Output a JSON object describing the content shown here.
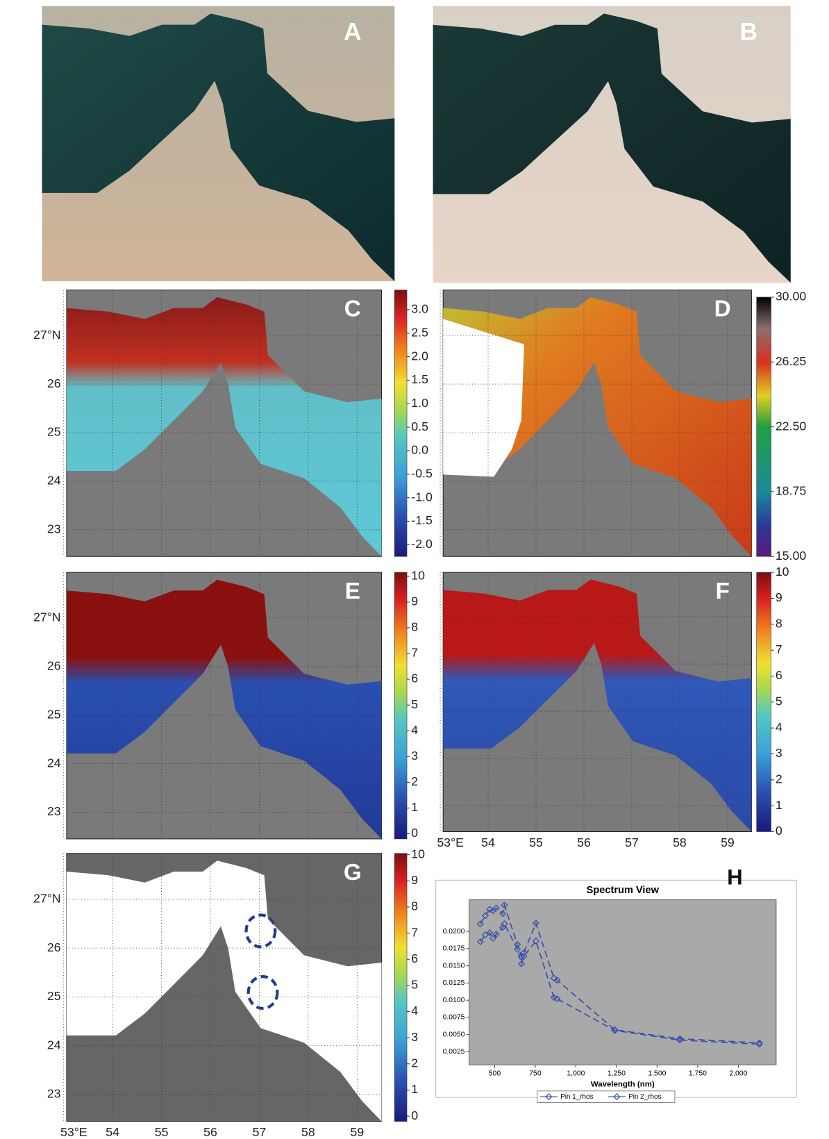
{
  "panels": [
    {
      "label": "A"
    },
    {
      "label": "B"
    }
  ],
  "map_axes": {
    "lat_range": [
      22.45,
      27.94
    ],
    "lon_range": [
      53.06,
      59.5
    ],
    "lat_ticks": [
      {
        "value": 27,
        "label": "27°N"
      },
      26,
      25,
      24,
      23
    ],
    "lon_ticks": [
      {
        "value": 53,
        "label": "53°E"
      },
      54,
      55,
      56,
      57,
      58,
      59
    ]
  },
  "maps": [
    {
      "label": "C",
      "clim": [
        -2.25,
        3.42
      ],
      "ticks": [
        {
          "value": 3,
          "label": "3.0"
        },
        2.5,
        {
          "value": 2,
          "label": "2.0"
        },
        1.5,
        {
          "value": 1,
          "label": "1.0"
        },
        0.5,
        {
          "value": 0,
          "label": "0.0"
        },
        -0.5,
        {
          "value": -1,
          "label": "-1.0"
        },
        -1.5,
        {
          "value": -2,
          "label": "-2.0"
        }
      ]
    },
    {
      "label": "D",
      "clim": [
        15,
        30
      ],
      "ticks": [
        {
          "value": 30,
          "label": "30.00"
        },
        {
          "value": 26.25,
          "label": "26.25"
        },
        {
          "value": 22.5,
          "label": "22.50"
        },
        {
          "value": 18.75,
          "label": "18.75"
        },
        {
          "value": 15,
          "label": "15.00"
        }
      ]
    },
    {
      "label": "E",
      "clim": [
        -0.2,
        10.15
      ],
      "ticks": [
        10,
        9,
        8,
        7,
        6,
        5,
        4,
        3,
        2,
        1,
        0
      ]
    },
    {
      "label": "F",
      "clim": [
        0,
        10
      ],
      "ticks": [
        10,
        9,
        8,
        7,
        6,
        5,
        4,
        3,
        2,
        1,
        0
      ]
    },
    {
      "label": "G",
      "clim": [
        -0.2,
        10.05
      ],
      "ticks": [
        10,
        9,
        8,
        7,
        6,
        5,
        4,
        3,
        2,
        1,
        0
      ]
    }
  ],
  "chart_data": {
    "type": "line",
    "panel_label": "H",
    "title": "Spectrum View",
    "x_label": "Wavelength (nm)",
    "x": [
      412,
      443,
      470,
      490,
      510,
      550,
      560,
      640,
      665,
      680,
      754,
      865,
      885,
      1240,
      1640,
      2130
    ],
    "series": [
      {
        "name": "Pin 1_rhos",
        "color": "#3a4fa8",
        "values": [
          0.0211,
          0.0223,
          0.0232,
          0.023,
          0.0234,
          0.0226,
          0.0238,
          0.0181,
          0.0163,
          0.0169,
          0.0212,
          0.0132,
          0.0129,
          0.0057,
          0.0044,
          0.0038
        ]
      },
      {
        "name": "Pin 2_rhos",
        "color": "#3a4fa8",
        "values": [
          0.0185,
          0.0195,
          0.0198,
          0.019,
          0.0196,
          0.0206,
          0.0211,
          0.0174,
          0.0153,
          0.0164,
          0.0186,
          0.0104,
          0.0102,
          0.0056,
          0.0042,
          0.0036
        ]
      }
    ],
    "xlim": [
      343,
      2233
    ],
    "ylim": [
      0.0006,
      0.0246
    ],
    "xticks": [
      500,
      750,
      {
        "value": 1000,
        "label": "1,000"
      },
      {
        "value": 1250,
        "label": "1,250"
      },
      {
        "value": 1500,
        "label": "1,500"
      },
      {
        "value": 1750,
        "label": "1,750"
      },
      {
        "value": 2000,
        "label": "2,000"
      }
    ],
    "yticks": [
      {
        "value": 0.02,
        "label": "0.0200"
      },
      0.0175,
      {
        "value": 0.015,
        "label": "0.0150"
      },
      0.0125,
      {
        "value": 0.01,
        "label": "0.0100"
      },
      0.0075,
      {
        "value": 0.005,
        "label": "0.0050"
      },
      0.0025
    ],
    "legend": "bottom",
    "line_style": "dashed",
    "marker": "diamond"
  }
}
